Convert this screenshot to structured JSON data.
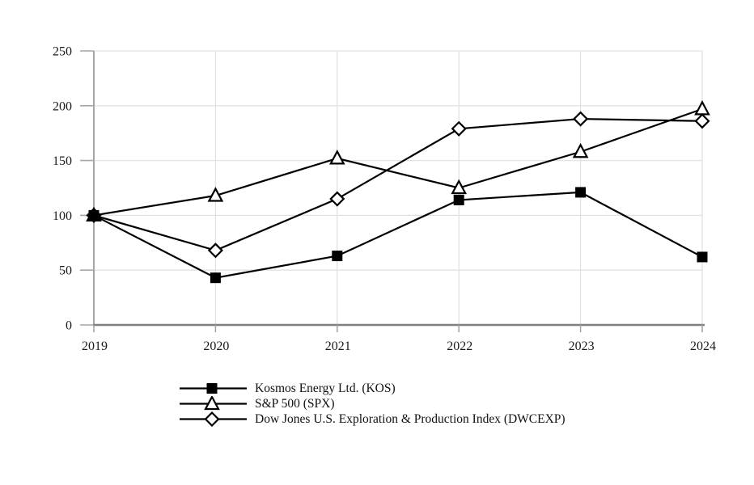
{
  "chart_data": {
    "type": "line",
    "title": "",
    "xlabel": "",
    "ylabel": "",
    "categories": [
      "2019",
      "2020",
      "2021",
      "2022",
      "2023",
      "2024"
    ],
    "ylim": [
      0,
      250
    ],
    "yticks": [
      0,
      50,
      100,
      150,
      200,
      250
    ],
    "grid": true,
    "legend_position": "bottom-left",
    "series": [
      {
        "name": "Kosmos Energy Ltd. (KOS)",
        "marker": "square-filled",
        "color": "#000000",
        "values": [
          100,
          43,
          63,
          114,
          121,
          62
        ]
      },
      {
        "name": "S&P 500 (SPX)",
        "marker": "triangle-open",
        "color": "#000000",
        "values": [
          100,
          118,
          152,
          125,
          158,
          197
        ]
      },
      {
        "name": "Dow Jones U.S. Exploration & Production Index (DWCEXP)",
        "marker": "diamond-open",
        "color": "#000000",
        "values": [
          100,
          68,
          115,
          179,
          188,
          186
        ]
      }
    ]
  },
  "colors": {
    "background": "#ffffff",
    "series_line": "#000000",
    "x_axis": "#7f7f7f",
    "y_axis": "#a6a6a6",
    "tick": "#a6a6a6",
    "gridline": "#e2e2e2",
    "label_text": "#1a1a1a"
  }
}
